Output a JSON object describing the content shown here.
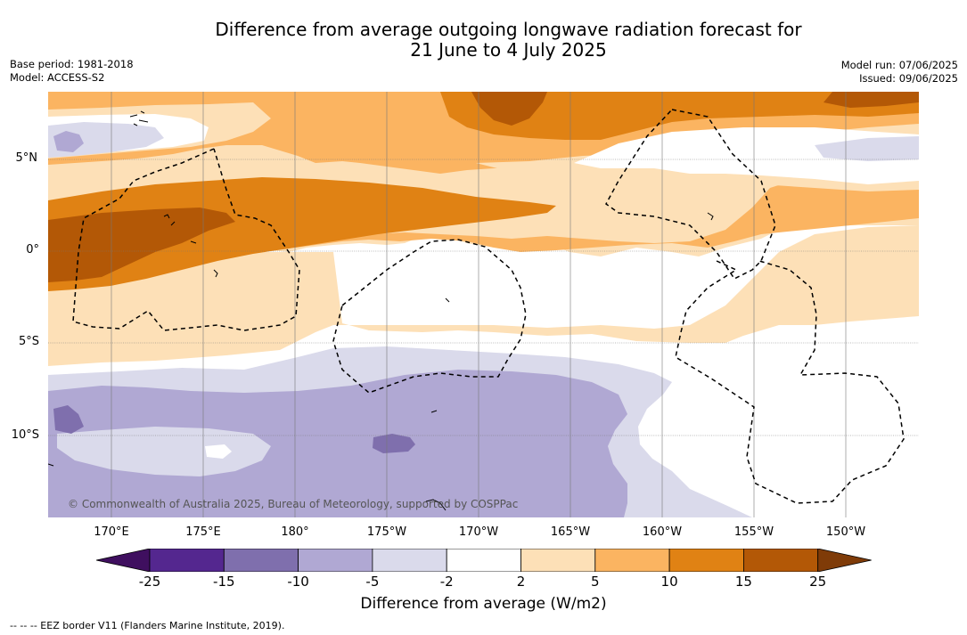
{
  "title": {
    "line1": "Difference from average outgoing longwave radiation forecast for",
    "line2": "21 June to 4 July 2025"
  },
  "meta_left": {
    "line1": "Base period: 1981-2018",
    "line2": "Model: ACCESS-S2"
  },
  "meta_right": {
    "line1": "Model run: 07/06/2025",
    "line2": "Issued: 09/06/2025"
  },
  "map": {
    "copyright": "© Commonwealth of Australia 2025, Bureau of Meteorology, supported by COSPPac",
    "lat_labels": [
      "5°N",
      "0°",
      "5°S",
      "10°S"
    ],
    "lon_labels": [
      "170°E",
      "175°E",
      "180°",
      "175°W",
      "170°W",
      "165°W",
      "160°W",
      "155°W",
      "150°W"
    ]
  },
  "colorbar": {
    "title": "Difference from average (W/m2)",
    "ticks": [
      "-25",
      "-15",
      "-10",
      "-5",
      "-2",
      "2",
      "5",
      "10",
      "15",
      "25"
    ],
    "colors": [
      "#3f0f5f",
      "#54278f",
      "#7f6fad",
      "#b0a8d3",
      "#dadaeb",
      "#ffffff",
      "#fde0b7",
      "#fbb461",
      "#e08214",
      "#b35806",
      "#7f3b08"
    ]
  },
  "footer": "--  --  -- EEZ border V11 (Flanders Marine Institute, 2019)."
}
